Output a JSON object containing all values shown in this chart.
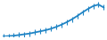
{
  "x": [
    0,
    1,
    2,
    3,
    4,
    5,
    6,
    7,
    8,
    9,
    10,
    11,
    12,
    13,
    14,
    15,
    16,
    17,
    18,
    19
  ],
  "y": [
    1,
    2,
    3,
    5,
    7,
    9,
    12,
    15,
    18,
    22,
    27,
    33,
    40,
    48,
    57,
    67,
    76,
    84,
    88,
    80
  ],
  "line_color": "#2185c5",
  "line_width": 1.3,
  "bg_color": "#ffffff",
  "ylim_min": 0,
  "ylim_max": 95,
  "marker": "|",
  "marker_size": 4,
  "marker_color": "#2185c5"
}
